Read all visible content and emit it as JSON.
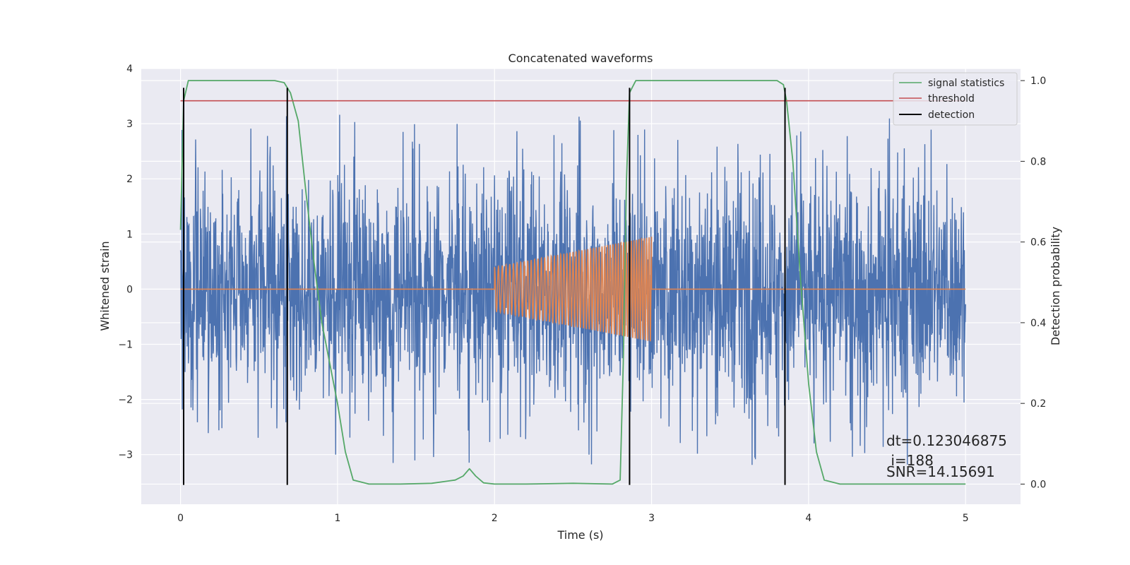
{
  "chart_data": {
    "type": "line",
    "title": "Concatenated waveforms",
    "xlabel": "Time (s)",
    "ylabel": "Whitened strain",
    "y2label": "Detection probability",
    "xlim": [
      -0.25,
      5.35
    ],
    "ylim": [
      -3.9,
      4.0
    ],
    "y2lim": [
      -0.05,
      1.03
    ],
    "xticks": [
      0,
      1,
      2,
      3,
      4,
      5
    ],
    "yticks": [
      -3,
      -2,
      -1,
      0,
      1,
      2,
      3,
      4
    ],
    "y2ticks": [
      0.0,
      0.2,
      0.4,
      0.6,
      0.8,
      1.0
    ],
    "xtick_labels": [
      "0",
      "1",
      "2",
      "3",
      "4",
      "5"
    ],
    "ytick_labels": [
      "−3",
      "−2",
      "−1",
      "0",
      "1",
      "2",
      "3",
      "4"
    ],
    "y2tick_labels": [
      "0.0",
      "0.2",
      "0.4",
      "0.6",
      "0.8",
      "1.0"
    ],
    "grid": true,
    "legend_placement": "top-right",
    "colors": {
      "strain": "#4c72b0",
      "injection": "#dd8452",
      "signal_statistics": "#55a868",
      "threshold": "#c44e52",
      "detection": "#000000",
      "plot_bg": "#eaeaf2"
    },
    "series": [
      {
        "name": "signal statistics",
        "axis": "right",
        "x": [
          0.0,
          0.02,
          0.05,
          0.1,
          0.2,
          0.4,
          0.6,
          0.66,
          0.7,
          0.75,
          0.8,
          0.85,
          0.9,
          0.95,
          1.0,
          1.05,
          1.1,
          1.2,
          1.4,
          1.6,
          1.75,
          1.8,
          1.84,
          1.88,
          1.93,
          2.0,
          2.2,
          2.5,
          2.75,
          2.8,
          2.82,
          2.84,
          2.86,
          2.9,
          3.0,
          3.5,
          3.8,
          3.84,
          3.86,
          3.9,
          3.95,
          4.0,
          4.05,
          4.1,
          4.2,
          4.5,
          5.0
        ],
        "y": [
          0.63,
          0.95,
          1.0,
          1.0,
          1.0,
          1.0,
          1.0,
          0.995,
          0.97,
          0.9,
          0.72,
          0.55,
          0.4,
          0.3,
          0.2,
          0.08,
          0.01,
          0.0,
          0.0,
          0.002,
          0.01,
          0.02,
          0.038,
          0.02,
          0.003,
          0.0,
          0.0,
          0.002,
          0.0,
          0.01,
          0.3,
          0.75,
          0.97,
          1.0,
          1.0,
          1.0,
          1.0,
          0.99,
          0.95,
          0.8,
          0.5,
          0.25,
          0.08,
          0.01,
          0.0,
          0.0,
          0.0
        ]
      },
      {
        "name": "threshold",
        "axis": "right",
        "x": [
          0.0,
          5.0
        ],
        "y": [
          0.95,
          0.95
        ]
      },
      {
        "name": "detection",
        "axis": "left",
        "x": [
          0.02,
          0.68,
          2.86,
          3.85
        ],
        "y_range": [
          -3.55,
          3.65
        ]
      },
      {
        "name": "",
        "axis": "left",
        "kind": "whitened-strain-noise",
        "x_range": [
          0.0,
          5.0
        ],
        "typical_amplitude": 1.3,
        "peak_min": -3.45,
        "peak_max": 3.65
      },
      {
        "name": "",
        "axis": "left",
        "kind": "injected-chirp",
        "x_range": [
          2.0,
          3.0
        ],
        "amplitude_start": 0.4,
        "amplitude_end": 0.95
      }
    ],
    "annotations": [
      "dt=0.123046875",
      " i=188",
      "SNR=14.15691"
    ]
  }
}
